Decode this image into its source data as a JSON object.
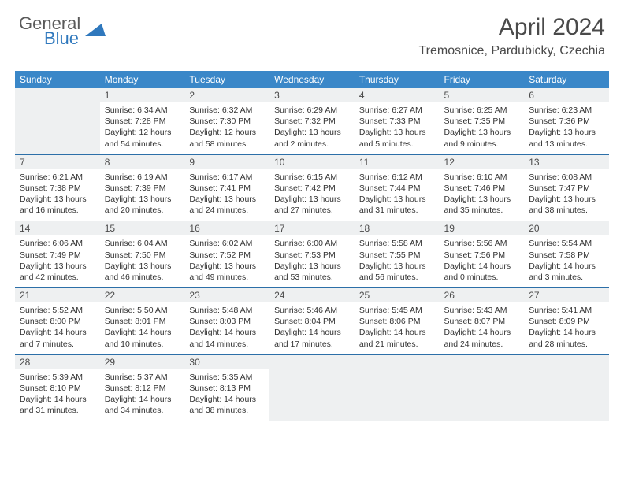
{
  "logo": {
    "text_general": "General",
    "text_blue": "Blue"
  },
  "title": "April 2024",
  "location": "Tremosnice, Pardubicky, Czechia",
  "colors": {
    "header_bg": "#3a87c8",
    "header_text": "#ffffff",
    "daynum_bg": "#eef0f1",
    "border": "#2c6fa8",
    "text": "#333333",
    "title_color": "#4a4a4a",
    "logo_gray": "#5a5a5a",
    "logo_blue": "#2f78bd"
  },
  "weekdays": [
    "Sunday",
    "Monday",
    "Tuesday",
    "Wednesday",
    "Thursday",
    "Friday",
    "Saturday"
  ],
  "weeks": [
    [
      null,
      {
        "n": "1",
        "sr": "6:34 AM",
        "ss": "7:28 PM",
        "dl": "12 hours and 54 minutes."
      },
      {
        "n": "2",
        "sr": "6:32 AM",
        "ss": "7:30 PM",
        "dl": "12 hours and 58 minutes."
      },
      {
        "n": "3",
        "sr": "6:29 AM",
        "ss": "7:32 PM",
        "dl": "13 hours and 2 minutes."
      },
      {
        "n": "4",
        "sr": "6:27 AM",
        "ss": "7:33 PM",
        "dl": "13 hours and 5 minutes."
      },
      {
        "n": "5",
        "sr": "6:25 AM",
        "ss": "7:35 PM",
        "dl": "13 hours and 9 minutes."
      },
      {
        "n": "6",
        "sr": "6:23 AM",
        "ss": "7:36 PM",
        "dl": "13 hours and 13 minutes."
      }
    ],
    [
      {
        "n": "7",
        "sr": "6:21 AM",
        "ss": "7:38 PM",
        "dl": "13 hours and 16 minutes."
      },
      {
        "n": "8",
        "sr": "6:19 AM",
        "ss": "7:39 PM",
        "dl": "13 hours and 20 minutes."
      },
      {
        "n": "9",
        "sr": "6:17 AM",
        "ss": "7:41 PM",
        "dl": "13 hours and 24 minutes."
      },
      {
        "n": "10",
        "sr": "6:15 AM",
        "ss": "7:42 PM",
        "dl": "13 hours and 27 minutes."
      },
      {
        "n": "11",
        "sr": "6:12 AM",
        "ss": "7:44 PM",
        "dl": "13 hours and 31 minutes."
      },
      {
        "n": "12",
        "sr": "6:10 AM",
        "ss": "7:46 PM",
        "dl": "13 hours and 35 minutes."
      },
      {
        "n": "13",
        "sr": "6:08 AM",
        "ss": "7:47 PM",
        "dl": "13 hours and 38 minutes."
      }
    ],
    [
      {
        "n": "14",
        "sr": "6:06 AM",
        "ss": "7:49 PM",
        "dl": "13 hours and 42 minutes."
      },
      {
        "n": "15",
        "sr": "6:04 AM",
        "ss": "7:50 PM",
        "dl": "13 hours and 46 minutes."
      },
      {
        "n": "16",
        "sr": "6:02 AM",
        "ss": "7:52 PM",
        "dl": "13 hours and 49 minutes."
      },
      {
        "n": "17",
        "sr": "6:00 AM",
        "ss": "7:53 PM",
        "dl": "13 hours and 53 minutes."
      },
      {
        "n": "18",
        "sr": "5:58 AM",
        "ss": "7:55 PM",
        "dl": "13 hours and 56 minutes."
      },
      {
        "n": "19",
        "sr": "5:56 AM",
        "ss": "7:56 PM",
        "dl": "14 hours and 0 minutes."
      },
      {
        "n": "20",
        "sr": "5:54 AM",
        "ss": "7:58 PM",
        "dl": "14 hours and 3 minutes."
      }
    ],
    [
      {
        "n": "21",
        "sr": "5:52 AM",
        "ss": "8:00 PM",
        "dl": "14 hours and 7 minutes."
      },
      {
        "n": "22",
        "sr": "5:50 AM",
        "ss": "8:01 PM",
        "dl": "14 hours and 10 minutes."
      },
      {
        "n": "23",
        "sr": "5:48 AM",
        "ss": "8:03 PM",
        "dl": "14 hours and 14 minutes."
      },
      {
        "n": "24",
        "sr": "5:46 AM",
        "ss": "8:04 PM",
        "dl": "14 hours and 17 minutes."
      },
      {
        "n": "25",
        "sr": "5:45 AM",
        "ss": "8:06 PM",
        "dl": "14 hours and 21 minutes."
      },
      {
        "n": "26",
        "sr": "5:43 AM",
        "ss": "8:07 PM",
        "dl": "14 hours and 24 minutes."
      },
      {
        "n": "27",
        "sr": "5:41 AM",
        "ss": "8:09 PM",
        "dl": "14 hours and 28 minutes."
      }
    ],
    [
      {
        "n": "28",
        "sr": "5:39 AM",
        "ss": "8:10 PM",
        "dl": "14 hours and 31 minutes."
      },
      {
        "n": "29",
        "sr": "5:37 AM",
        "ss": "8:12 PM",
        "dl": "14 hours and 34 minutes."
      },
      {
        "n": "30",
        "sr": "5:35 AM",
        "ss": "8:13 PM",
        "dl": "14 hours and 38 minutes."
      },
      null,
      null,
      null,
      null
    ]
  ],
  "labels": {
    "sunrise": "Sunrise:",
    "sunset": "Sunset:",
    "daylight": "Daylight:"
  }
}
